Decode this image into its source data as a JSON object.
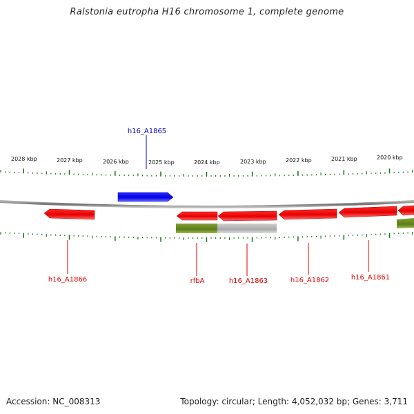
{
  "title": "Ralstonia eutropha H16 chromosome 1, complete genome",
  "footer": {
    "accession": "Accession: NC_008313",
    "stats": "Topology: circular; Length: 4,052,032 bp; Genes: 3,711"
  },
  "colors": {
    "forward": "#1a1aff",
    "reverse": "#ee0000",
    "olive": "#6b8e23",
    "gray": "#b8b8b8",
    "tick": "#1a7a1a",
    "backbone": "#888888"
  },
  "scale_labels": [
    "2028 kbp",
    "2027 kbp",
    "2026 kbp",
    "2025 kbp",
    "2024 kbp",
    "2023 kbp",
    "2022 kbp",
    "2021 kbp",
    "2020 kbp"
  ],
  "gene_labels": {
    "h16_A1865": "h16_A1865",
    "h16_A1866": "h16_A1866",
    "rfbA": "rfbA",
    "h16_A1863": "h16_A1863",
    "h16_A1862": "h16_A1862",
    "h16_A1861": "h16_A1861"
  }
}
